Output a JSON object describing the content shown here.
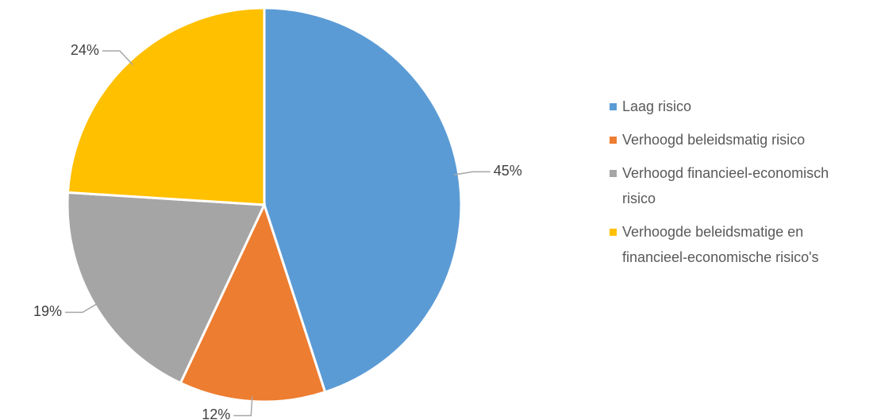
{
  "chart_data": {
    "type": "pie",
    "categories": [
      "Laag risico",
      "Verhoogd beleidsmatig risico",
      "Verhoogd financieel-economisch risico",
      "Verhoogde beleidsmatige en financieel-economische risico's"
    ],
    "values": [
      45,
      12,
      19,
      24
    ],
    "value_labels": [
      "45%",
      "12%",
      "19%",
      "24%"
    ],
    "colors": [
      "#5b9bd5",
      "#ed7d31",
      "#a5a5a5",
      "#ffc000"
    ],
    "legend": "right"
  }
}
